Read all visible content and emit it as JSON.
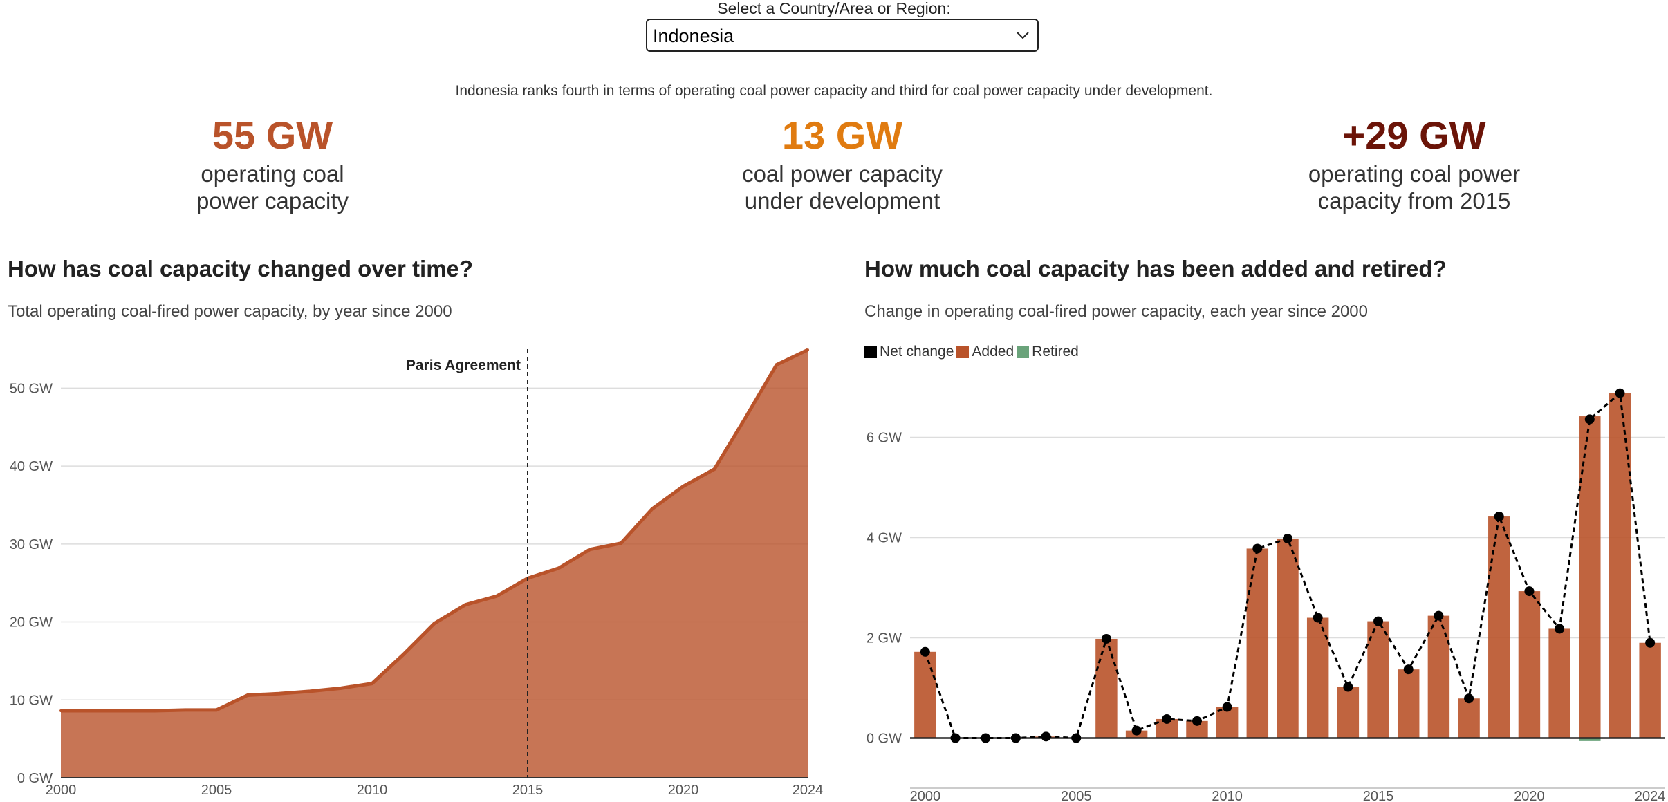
{
  "selector": {
    "label": "Select a Country/Area or Region:",
    "value": "Indonesia"
  },
  "ranking_text": "Indonesia ranks fourth in terms of operating coal power capacity and third for coal power capacity under development.",
  "stats": [
    {
      "value": "55 GW",
      "line1": "operating coal",
      "line2": "power capacity",
      "color": "#b9532a"
    },
    {
      "value": "13 GW",
      "line1": "coal power capacity",
      "line2": "under development",
      "color": "#e07b10"
    },
    {
      "value": "+29 GW",
      "line1": "operating coal power",
      "line2": "capacity from 2015",
      "color": "#6b1408"
    }
  ],
  "left_panel": {
    "title": "How has coal capacity changed over time?",
    "subtitle": "Total operating coal-fired power capacity, by year since 2000"
  },
  "right_panel": {
    "title": "How much coal capacity has been added and retired?",
    "subtitle": "Change in operating coal-fired power capacity, each year since 2000",
    "legend": [
      {
        "label": "Net change",
        "color": "#000000"
      },
      {
        "label": "Added",
        "color": "#b9532a"
      },
      {
        "label": "Retired",
        "color": "#6aa37a"
      }
    ]
  },
  "chart_data": [
    {
      "type": "area",
      "title": "How has coal capacity changed over time?",
      "subtitle": "Total operating coal-fired power capacity, by year since 2000",
      "color": "#b9532a",
      "x": [
        2000,
        2001,
        2002,
        2003,
        2004,
        2005,
        2006,
        2007,
        2008,
        2009,
        2010,
        2011,
        2012,
        2013,
        2014,
        2015,
        2016,
        2017,
        2018,
        2019,
        2020,
        2021,
        2022,
        2023,
        2024
      ],
      "y": [
        8.6,
        8.6,
        8.6,
        8.6,
        8.7,
        8.7,
        10.6,
        10.8,
        11.1,
        11.5,
        12.1,
        15.8,
        19.8,
        22.2,
        23.3,
        25.6,
        26.9,
        29.3,
        30.1,
        34.5,
        37.4,
        39.6,
        46.2,
        53.0,
        54.9
      ],
      "xlim": [
        2000,
        2024
      ],
      "ylim": [
        0,
        55
      ],
      "yticks": [
        0,
        10,
        20,
        30,
        40,
        50
      ],
      "ytick_labels": [
        "0 GW",
        "10 GW",
        "20 GW",
        "30 GW",
        "40 GW",
        "50 GW"
      ],
      "xticks": [
        2000,
        2005,
        2010,
        2015,
        2020,
        2024
      ],
      "annotation": {
        "x": 2015,
        "label": "Paris Agreement"
      },
      "grid": true
    },
    {
      "type": "bar",
      "title": "How much coal capacity has been added and retired?",
      "subtitle": "Change in operating coal-fired power capacity, each year since 2000",
      "x": [
        2000,
        2001,
        2002,
        2003,
        2004,
        2005,
        2006,
        2007,
        2008,
        2009,
        2010,
        2011,
        2012,
        2013,
        2014,
        2015,
        2016,
        2017,
        2018,
        2019,
        2020,
        2021,
        2022,
        2023,
        2024
      ],
      "series": [
        {
          "name": "Added",
          "color": "#b9532a",
          "values": [
            1.72,
            0,
            0,
            0,
            0.03,
            0,
            1.98,
            0.15,
            0.38,
            0.34,
            0.62,
            3.78,
            3.98,
            2.4,
            1.02,
            2.33,
            1.37,
            2.44,
            0.79,
            4.42,
            2.93,
            2.18,
            6.42,
            6.88,
            1.9
          ]
        },
        {
          "name": "Retired",
          "color": "#6aa37a",
          "values": [
            0,
            0,
            0,
            0,
            0,
            0,
            0,
            0,
            0,
            0,
            0,
            0,
            0,
            0,
            0,
            0,
            0,
            0,
            0,
            0,
            0,
            0,
            -0.06,
            0,
            0
          ]
        },
        {
          "name": "Net change",
          "color": "#000000",
          "values": [
            1.72,
            0,
            0,
            0,
            0.03,
            0,
            1.98,
            0.15,
            0.38,
            0.34,
            0.62,
            3.78,
            3.98,
            2.4,
            1.02,
            2.33,
            1.37,
            2.44,
            0.79,
            4.42,
            2.93,
            2.18,
            6.36,
            6.88,
            1.9
          ]
        }
      ],
      "xlim": [
        1999.5,
        2024.5
      ],
      "ylim": [
        -1,
        7
      ],
      "yticks": [
        0,
        2,
        4,
        6
      ],
      "ytick_labels": [
        "0 GW",
        "2 GW",
        "4 GW",
        "6 GW"
      ],
      "xticks": [
        2000,
        2005,
        2010,
        2015,
        2020,
        2024
      ],
      "legend": "top-left",
      "grid": true
    }
  ]
}
